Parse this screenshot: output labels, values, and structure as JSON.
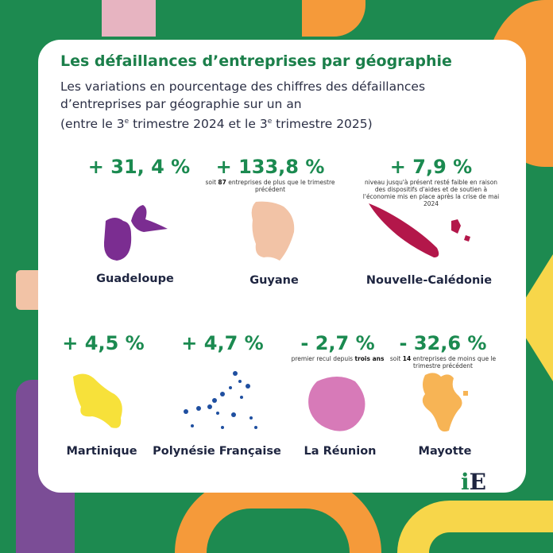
{
  "title": "Les défaillances d’entreprises par géographie",
  "subtitle": {
    "line1": "Les variations en pourcentage des chiffres des défaillances",
    "line2": "d’entreprises par géographie sur un an",
    "line3a": "(entre le 3",
    "sup1": "e",
    "line3b": " trimestre 2024 et le 3",
    "sup2": "e",
    "line3c": " trimestre 2025)"
  },
  "regions": [
    {
      "name": "Guadeloupe",
      "change": "+ 31, 4 %",
      "color": "#7b2d91"
    },
    {
      "name": "Guyane",
      "change": "+ 133,8 %",
      "note_pre": "soit ",
      "note_bold": "87",
      "note_post": " entreprises de plus que le trimestre précédent",
      "color": "#f2c3a6"
    },
    {
      "name": "Nouvelle-Calédonie",
      "change": "+ 7,9 %",
      "note_pre": "niveau jusqu'à présent resté faible en raison des dispositifs d'aides et de soutien à l'économie mis en place après la crise de mai 2024",
      "color": "#b3174a"
    },
    {
      "name": "Martinique",
      "change": "+ 4,5 %",
      "color": "#f7e13a"
    },
    {
      "name": "Polynésie Française",
      "change": "+ 4,7 %",
      "color": "#1f4fa0"
    },
    {
      "name": "La Réunion",
      "change": "- 2,7 %",
      "note_pre": "premier recul depuis ",
      "note_bold": "trois ans",
      "color": "#d77ab8"
    },
    {
      "name": "Mayotte",
      "change": "- 32,6 %",
      "note_pre": "soit ",
      "note_bold": "14",
      "note_post": " entreprises de moins que le trimestre précédent",
      "color": "#f7b455"
    }
  ],
  "logo": {
    "i": "i",
    "e": "E"
  }
}
